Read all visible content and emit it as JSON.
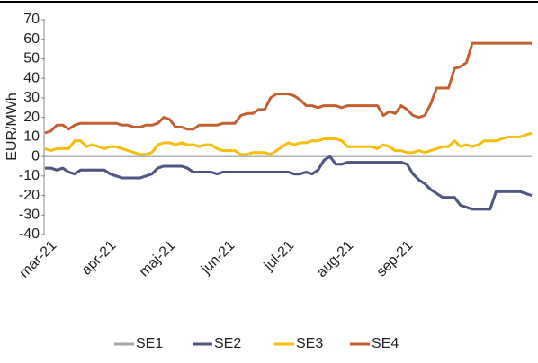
{
  "chart_data": {
    "type": "line",
    "ylabel": "EUR/MWh",
    "categories": [
      null,
      "mar-21",
      null,
      null,
      null,
      null,
      null,
      null,
      null,
      null,
      null,
      "apr-21",
      null,
      null,
      null,
      null,
      null,
      null,
      null,
      null,
      null,
      "maj-21",
      null,
      null,
      null,
      null,
      null,
      null,
      null,
      null,
      null,
      "jun-21",
      null,
      null,
      null,
      null,
      null,
      null,
      null,
      null,
      null,
      "jul-21",
      null,
      null,
      null,
      null,
      null,
      null,
      null,
      null,
      null,
      "aug-21",
      null,
      null,
      null,
      null,
      null,
      null,
      null,
      null,
      null,
      "sep-21",
      null,
      null,
      null,
      null,
      null,
      null,
      null,
      null,
      null,
      null,
      null,
      null,
      null,
      null,
      null,
      null,
      null,
      null,
      null,
      null,
      null
    ],
    "series": [
      {
        "name": "SE1",
        "color": "#a5a5a5",
        "values": [
          -6,
          -6,
          -7,
          -6,
          -8,
          -9,
          -7,
          -7,
          -7,
          -7,
          -7,
          -9,
          -10,
          -11,
          -11,
          -11,
          -11,
          -10,
          -9,
          -6,
          -5,
          -5,
          -5,
          -5,
          -6,
          -8,
          -8,
          -8,
          -8,
          -9,
          -8,
          -8,
          -8,
          -8,
          -8,
          -8,
          -8,
          -8,
          -8,
          -8,
          -8,
          -8,
          -9,
          -9,
          -8,
          -9,
          -7,
          -2,
          0,
          -4,
          -4,
          -3,
          -3,
          -3,
          -3,
          -3,
          -3,
          -3,
          -3,
          -3,
          -3,
          -4,
          -9,
          -12,
          -14,
          -17,
          -19,
          -21,
          -21,
          -21,
          -25,
          -26,
          -27,
          -27,
          -27,
          -27,
          -18,
          -18,
          -18,
          -18,
          -18,
          -19,
          -20
        ]
      },
      {
        "name": "SE2",
        "color": "#4f5683",
        "values": [
          -6,
          -6,
          -7,
          -6,
          -8,
          -9,
          -7,
          -7,
          -7,
          -7,
          -7,
          -9,
          -10,
          -11,
          -11,
          -11,
          -11,
          -10,
          -9,
          -6,
          -5,
          -5,
          -5,
          -5,
          -6,
          -8,
          -8,
          -8,
          -8,
          -9,
          -8,
          -8,
          -8,
          -8,
          -8,
          -8,
          -8,
          -8,
          -8,
          -8,
          -8,
          -8,
          -9,
          -9,
          -8,
          -9,
          -7,
          -2,
          0,
          -4,
          -4,
          -3,
          -3,
          -3,
          -3,
          -3,
          -3,
          -3,
          -3,
          -3,
          -3,
          -4,
          -9,
          -12,
          -14,
          -17,
          -19,
          -21,
          -21,
          -21,
          -25,
          -26,
          -27,
          -27,
          -27,
          -27,
          -18,
          -18,
          -18,
          -18,
          -18,
          -19,
          -20
        ]
      },
      {
        "name": "SE3",
        "color": "#f5be0b",
        "values": [
          4,
          3,
          4,
          4,
          4,
          8,
          8,
          5,
          6,
          5,
          4,
          5,
          5,
          4,
          3,
          2,
          1,
          1,
          2,
          6,
          7,
          7,
          6,
          7,
          6,
          6,
          5,
          6,
          6,
          4,
          3,
          3,
          3,
          1,
          1,
          2,
          2,
          2,
          1,
          3,
          5,
          7,
          6,
          7,
          7,
          8,
          8,
          9,
          9,
          9,
          8,
          5,
          5,
          5,
          5,
          5,
          4,
          6,
          5,
          3,
          3,
          2,
          2,
          3,
          2,
          3,
          4,
          5,
          5,
          8,
          5,
          6,
          5,
          6,
          8,
          8,
          8,
          9,
          10,
          10,
          10,
          11,
          12
        ]
      },
      {
        "name": "SE4",
        "color": "#c4602f",
        "values": [
          12,
          13,
          16,
          16,
          14,
          16,
          17,
          17,
          17,
          17,
          17,
          17,
          17,
          16,
          16,
          15,
          15,
          16,
          16,
          17,
          20,
          19,
          15,
          15,
          14,
          14,
          16,
          16,
          16,
          16,
          17,
          17,
          17,
          21,
          22,
          22,
          24,
          24,
          30,
          32,
          32,
          32,
          31,
          29,
          26,
          26,
          25,
          26,
          26,
          26,
          25,
          26,
          26,
          26,
          26,
          26,
          26,
          21,
          23,
          22,
          26,
          24,
          21,
          20,
          21,
          27,
          35,
          35,
          35,
          45,
          46,
          48,
          58,
          58,
          58,
          58,
          58,
          58,
          58,
          58,
          58,
          58,
          58
        ]
      }
    ],
    "ylim": [
      -40,
      70
    ],
    "yticks": [
      -40,
      -30,
      -20,
      -10,
      0,
      10,
      20,
      30,
      40,
      50,
      60,
      70
    ],
    "grid": false,
    "legend": "bottom"
  }
}
